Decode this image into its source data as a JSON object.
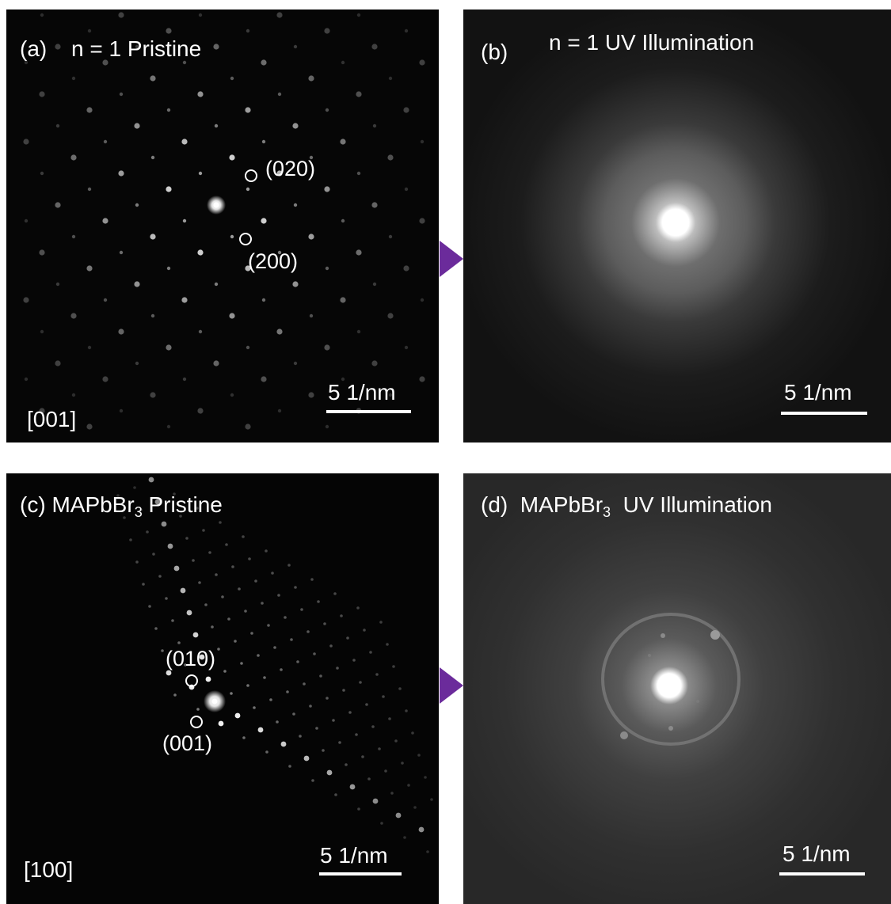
{
  "panels": {
    "a": {
      "letter": "(a)",
      "title": "n = 1 Pristine",
      "zone_axis": "[001]",
      "spot_labels": [
        "(020)",
        "(200)"
      ],
      "scale_bar": "5 1/nm"
    },
    "b": {
      "letter": "(b)",
      "title": "n = 1 UV Illumination",
      "scale_bar": "5 1/nm"
    },
    "c": {
      "letter": "(c)",
      "title_main": "MAPbBr",
      "title_sub": "3",
      "title_rest": "Pristine",
      "zone_axis": "[100]",
      "spot_labels": [
        "(010)",
        "(001)"
      ],
      "scale_bar": "5 1/nm"
    },
    "d": {
      "letter": "(d)",
      "title_main": "MAPbBr",
      "title_sub": "3",
      "title_rest": "UV Illumination",
      "scale_bar": "5 1/nm"
    }
  },
  "colors": {
    "arrow": "#6b2b9b"
  }
}
